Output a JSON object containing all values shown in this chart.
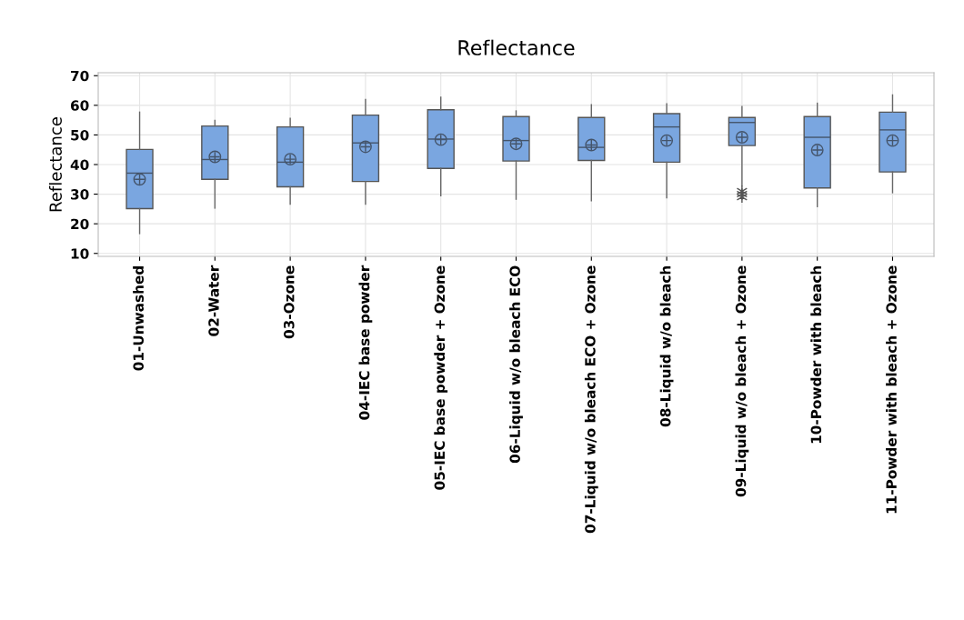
{
  "chart_data": {
    "type": "box",
    "title": "Reflectance",
    "ylabel": "Reflectance",
    "categories": [
      "01-Unwashed",
      "02-Water",
      "03-Ozone",
      "04-IEC base powder",
      "05-IEC base powder + Ozone",
      "06-Liquid w/o bleach ECO",
      "07-Liquid w/o bleach ECO + Ozone",
      "08-Liquid w/o bleach",
      "09-Liquid w/o bleach + Ozone",
      "10-Powder with bleach",
      "11-Powder with bleach + Ozone"
    ],
    "color": "#7aa6e0",
    "boxes": [
      {
        "low": 16.7,
        "q1": 25.1,
        "median": 37.1,
        "q3": 45.1,
        "high": 57.7,
        "mean": 35
      },
      {
        "low": 25.3,
        "q1": 35,
        "median": 41.7,
        "q3": 53,
        "high": 54.9,
        "mean": 42.6
      },
      {
        "low": 26.6,
        "q1": 32.5,
        "median": 40.8,
        "q3": 52.7,
        "high": 55.6,
        "mean": 41.8
      },
      {
        "low": 26.6,
        "q1": 34.3,
        "median": 47.3,
        "q3": 56.7,
        "high": 62,
        "mean": 46
      },
      {
        "low": 29.5,
        "q1": 38.7,
        "median": 48.6,
        "q3": 58.5,
        "high": 62.7,
        "mean": 48.4
      },
      {
        "low": 28.3,
        "q1": 41.2,
        "median": 48.1,
        "q3": 56.2,
        "high": 58.1,
        "mean": 47
      },
      {
        "low": 27.8,
        "q1": 41.4,
        "median": 45.8,
        "q3": 55.9,
        "high": 60.2,
        "mean": 46.6
      },
      {
        "low": 28.8,
        "q1": 40.8,
        "median": 52.7,
        "q3": 57.2,
        "high": 60.5,
        "mean": 48.1
      },
      {
        "low": 33,
        "q1": 46.4,
        "median": 54.2,
        "q3": 55.9,
        "high": 59.6,
        "mean": 49.2,
        "outliers": [
          31,
          30,
          29
        ]
      },
      {
        "low": 25.8,
        "q1": 32.1,
        "median": 49.2,
        "q3": 56.2,
        "high": 60.7,
        "mean": 44.9
      },
      {
        "low": 30.5,
        "q1": 37.5,
        "median": 51.7,
        "q3": 57.7,
        "high": 63.5,
        "mean": 48.1
      }
    ],
    "ylim": [
      9,
      71
    ],
    "yticks": [
      10,
      20,
      30,
      40,
      50,
      60,
      70
    ],
    "grid": true
  }
}
